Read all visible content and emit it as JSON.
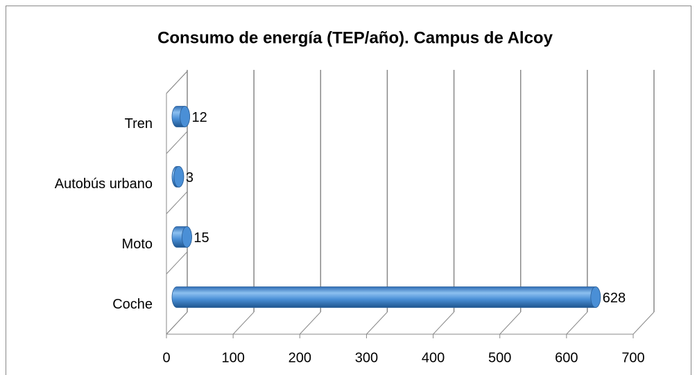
{
  "chart_data": {
    "type": "bar",
    "orientation": "horizontal",
    "title": "Consumo de energía (TEP/año). Campus de Alcoy",
    "categories": [
      "Coche",
      "Moto",
      "Autobús urbano",
      "Tren"
    ],
    "values": [
      628,
      15,
      3,
      12
    ],
    "color": "#4a8fd6",
    "xlim": [
      0,
      700
    ],
    "xticks": [
      0,
      100,
      200,
      300,
      400,
      500,
      600,
      700
    ],
    "grid": true
  }
}
